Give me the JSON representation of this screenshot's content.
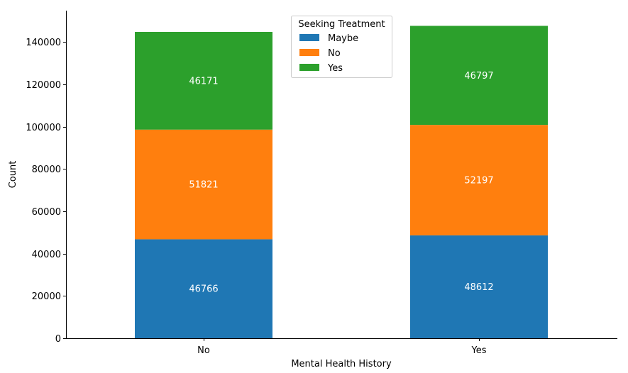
{
  "chart_data": {
    "type": "bar",
    "stacked": true,
    "categories": [
      "No",
      "Yes"
    ],
    "series": [
      {
        "name": "Maybe",
        "color": "#1f77b4",
        "values": [
          46766,
          48612
        ]
      },
      {
        "name": "No",
        "color": "#ff7f0e",
        "values": [
          51821,
          52197
        ]
      },
      {
        "name": "Yes",
        "color": "#2ca02c",
        "values": [
          46171,
          46797
        ]
      }
    ],
    "xlabel": "Mental Health History",
    "ylabel": "Count",
    "ylim": [
      0,
      154800
    ],
    "yticks": [
      0,
      20000,
      40000,
      60000,
      80000,
      100000,
      120000,
      140000
    ],
    "ytick_labels": [
      "0",
      "20000",
      "40000",
      "60000",
      "80000",
      "100000",
      "120000",
      "140000"
    ],
    "legend": {
      "title": "Seeking Treatment",
      "position": "top-center"
    },
    "data_labels": true,
    "grid": false
  }
}
